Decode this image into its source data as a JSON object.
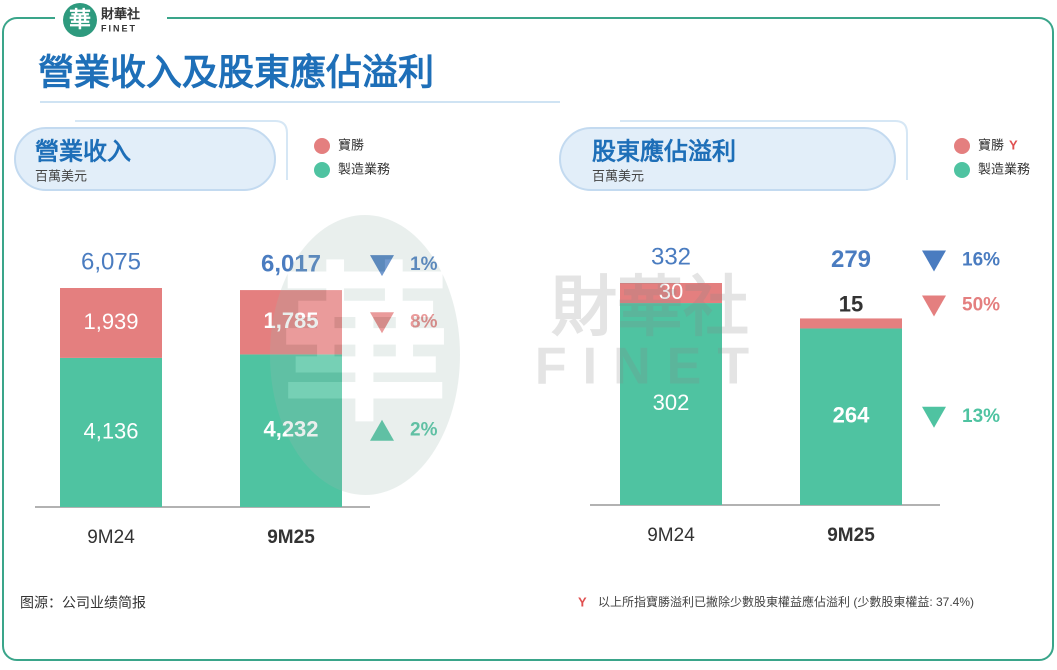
{
  "brand": {
    "logo_char": "華",
    "name": "財華社",
    "sub": "FINET"
  },
  "title": "營業收入及股東應佔溢利",
  "watermark": {
    "name": "財華社",
    "sub": "FINET",
    "logo_char": "華"
  },
  "highlight_index": 1,
  "chart_data": [
    {
      "type": "stacked-bar",
      "title": "營業收入",
      "subtitle": "百萬美元",
      "categories": [
        "9M24",
        "9M25"
      ],
      "totals": [
        6075,
        6017
      ],
      "total_labels": [
        "6,075",
        "6,017"
      ],
      "total_color": "#4a7cc0",
      "total_change": "1%",
      "total_change_direction": "down",
      "series": [
        {
          "name": "寶勝",
          "color": "#e47f7f",
          "values": [
            1939,
            1785
          ],
          "value_labels": [
            "1,939",
            "1,785"
          ],
          "change": "8%",
          "change_direction": "down"
        },
        {
          "name": "製造業務",
          "color": "#4fc3a1",
          "values": [
            4136,
            4232
          ],
          "value_labels": [
            "4,136",
            "4,232"
          ],
          "change": "2%",
          "change_direction": "up"
        }
      ]
    },
    {
      "type": "stacked-bar",
      "title": "股東應佔溢利",
      "subtitle": "百萬美元",
      "categories": [
        "9M24",
        "9M25"
      ],
      "totals": [
        332,
        279
      ],
      "total_color": "#4a7cc0",
      "total_change": "16%",
      "total_change_direction": "down",
      "series": [
        {
          "name": "寶勝",
          "color": "#e47f7f",
          "values": [
            30,
            15
          ],
          "change": "50%",
          "change_direction": "down",
          "footnote_marked": true
        },
        {
          "name": "製造業務",
          "color": "#4fc3a1",
          "values": [
            302,
            264
          ],
          "change": "13%",
          "change_direction": "down"
        }
      ]
    }
  ],
  "source": "图源：公司业绩简报",
  "footnote": {
    "mark": "Y",
    "text": "以上所指寶勝溢利已撇除少數股東權益應佔溢利 (少數股東權益: 37.4%)"
  }
}
